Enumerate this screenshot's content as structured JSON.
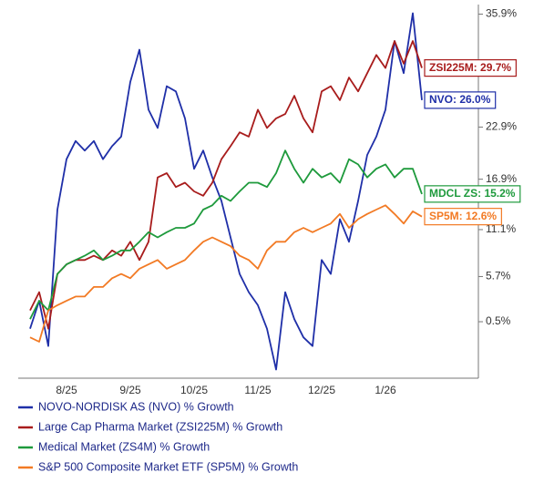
{
  "chart_data": {
    "type": "line",
    "categories": [
      null,
      null,
      null,
      null,
      "8/25",
      null,
      null,
      null,
      null,
      null,
      null,
      "9/25",
      null,
      null,
      null,
      null,
      null,
      null,
      "10/25",
      null,
      null,
      null,
      null,
      null,
      null,
      "11/25",
      null,
      null,
      null,
      null,
      null,
      null,
      "12/25",
      null,
      null,
      null,
      null,
      null,
      null,
      "1/26",
      null,
      null,
      null,
      null
    ],
    "series": [
      {
        "name": "NOVO-NORDISK AS (NVO) % Growth",
        "color": "#1f2fa8",
        "end_label": "NVO: 26.0%",
        "values": [
          -0.3,
          2.9,
          -2.3,
          13.4,
          19.2,
          21.3,
          20.2,
          21.3,
          19.2,
          20.7,
          21.8,
          28.1,
          31.8,
          24.9,
          22.8,
          27.6,
          27.0,
          23.9,
          18.1,
          20.2,
          17.1,
          14.4,
          10.2,
          6.0,
          3.9,
          2.4,
          -0.3,
          -5.0,
          3.9,
          0.8,
          -1.3,
          -2.3,
          7.6,
          6.0,
          12.3,
          9.7,
          14.4,
          19.7,
          21.8,
          24.9,
          32.8,
          29.1,
          36.0,
          26.0
        ]
      },
      {
        "name": "Large Cap Pharma Market (ZSI225M) % Growth",
        "color": "#a81c1c",
        "end_label": "ZSI225M: 29.7%",
        "values": [
          1.8,
          3.9,
          -0.3,
          6.0,
          7.1,
          7.6,
          7.6,
          8.1,
          7.6,
          8.7,
          8.1,
          9.7,
          7.6,
          9.7,
          17.1,
          17.6,
          16.0,
          16.5,
          15.5,
          15.0,
          16.5,
          19.2,
          20.7,
          22.3,
          21.8,
          24.9,
          22.8,
          23.9,
          24.4,
          26.5,
          23.9,
          22.3,
          27.0,
          27.6,
          26.0,
          28.6,
          27.0,
          29.1,
          31.2,
          29.7,
          32.8,
          30.2,
          32.8,
          29.7
        ]
      },
      {
        "name": "Medical Market (ZS4M) % Growth",
        "color": "#1e9a3c",
        "end_label": "MDCL ZS: 15.2%",
        "values": [
          0.8,
          2.9,
          1.8,
          6.0,
          7.1,
          7.6,
          8.1,
          8.7,
          7.6,
          8.1,
          8.7,
          8.7,
          9.7,
          10.8,
          10.2,
          10.8,
          11.3,
          11.3,
          11.8,
          13.4,
          13.9,
          15.0,
          14.4,
          15.5,
          16.5,
          16.5,
          16.0,
          17.6,
          20.2,
          18.1,
          16.5,
          18.1,
          17.1,
          17.6,
          16.5,
          19.2,
          18.6,
          17.1,
          18.1,
          18.6,
          17.1,
          18.1,
          18.1,
          15.2
        ]
      },
      {
        "name": "S&P 500 Composite Market ETF (SP5M) % Growth",
        "color": "#f27a24",
        "end_label": "SP5M: 12.6%",
        "values": [
          -1.3,
          -1.8,
          1.8,
          2.4,
          2.9,
          3.4,
          3.4,
          4.5,
          4.5,
          5.5,
          6.0,
          5.5,
          6.6,
          7.1,
          7.6,
          6.6,
          7.1,
          7.6,
          8.7,
          9.7,
          10.2,
          9.7,
          9.2,
          8.1,
          7.6,
          6.6,
          8.7,
          9.7,
          9.7,
          10.8,
          11.3,
          10.8,
          11.3,
          11.8,
          12.9,
          11.3,
          12.3,
          12.9,
          13.4,
          13.9,
          12.9,
          11.8,
          13.2,
          12.6
        ]
      }
    ],
    "ylim": [
      -6,
      37
    ],
    "yticks": [
      {
        "value": 0.5,
        "label": "0.5%"
      },
      {
        "value": 5.7,
        "label": "5.7%"
      },
      {
        "value": 11.1,
        "label": "11.1%"
      },
      {
        "value": 16.9,
        "label": "16.9%"
      },
      {
        "value": 22.9,
        "label": "22.9%"
      },
      {
        "value": 35.9,
        "label": "35.9%"
      }
    ],
    "y_axis_side": "right",
    "legend": "bottom",
    "grid": false
  }
}
